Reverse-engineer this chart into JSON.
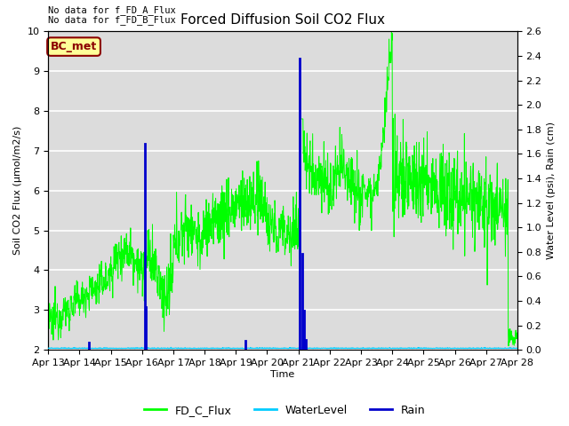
{
  "title": "Forced Diffusion Soil CO2 Flux",
  "xlabel": "Time",
  "ylabel_left": "Soil CO2 Flux (μmol/m2/s)",
  "ylabel_right": "Water Level (psi), Rain (cm)",
  "text_no_data": [
    "No data for f_FD_A_Flux",
    "No data for f_FD_B_Flux"
  ],
  "bc_met_label": "BC_met",
  "bc_met_color": "#8B0000",
  "bc_met_bg": "#FFFF99",
  "ylim_left": [
    2.0,
    10.0
  ],
  "ylim_right": [
    0.0,
    2.6
  ],
  "xstart": 0,
  "xend": 15,
  "xtick_labels": [
    "Apr 13",
    "Apr 14",
    "Apr 15",
    "Apr 16",
    "Apr 17",
    "Apr 18",
    "Apr 19",
    "Apr 20",
    "Apr 21",
    "Apr 22",
    "Apr 23",
    "Apr 24",
    "Apr 25",
    "Apr 26",
    "Apr 27",
    "Apr 28"
  ],
  "xtick_positions": [
    0,
    1,
    2,
    3,
    4,
    5,
    6,
    7,
    8,
    9,
    10,
    11,
    12,
    13,
    14,
    15
  ],
  "flux_color": "#00FF00",
  "water_color": "#00CCFF",
  "rain_color": "#0000CC",
  "background_color": "#DCDCDC",
  "legend_entries": [
    "FD_C_Flux",
    "WaterLevel",
    "Rain"
  ],
  "grid_color": "white",
  "rain_times": [
    1.3,
    3.1,
    3.13,
    6.3,
    8.05,
    8.12,
    8.18,
    8.25
  ],
  "rain_heights": [
    0.06,
    1.68,
    0.35,
    0.07,
    2.38,
    0.78,
    0.32,
    0.08
  ]
}
